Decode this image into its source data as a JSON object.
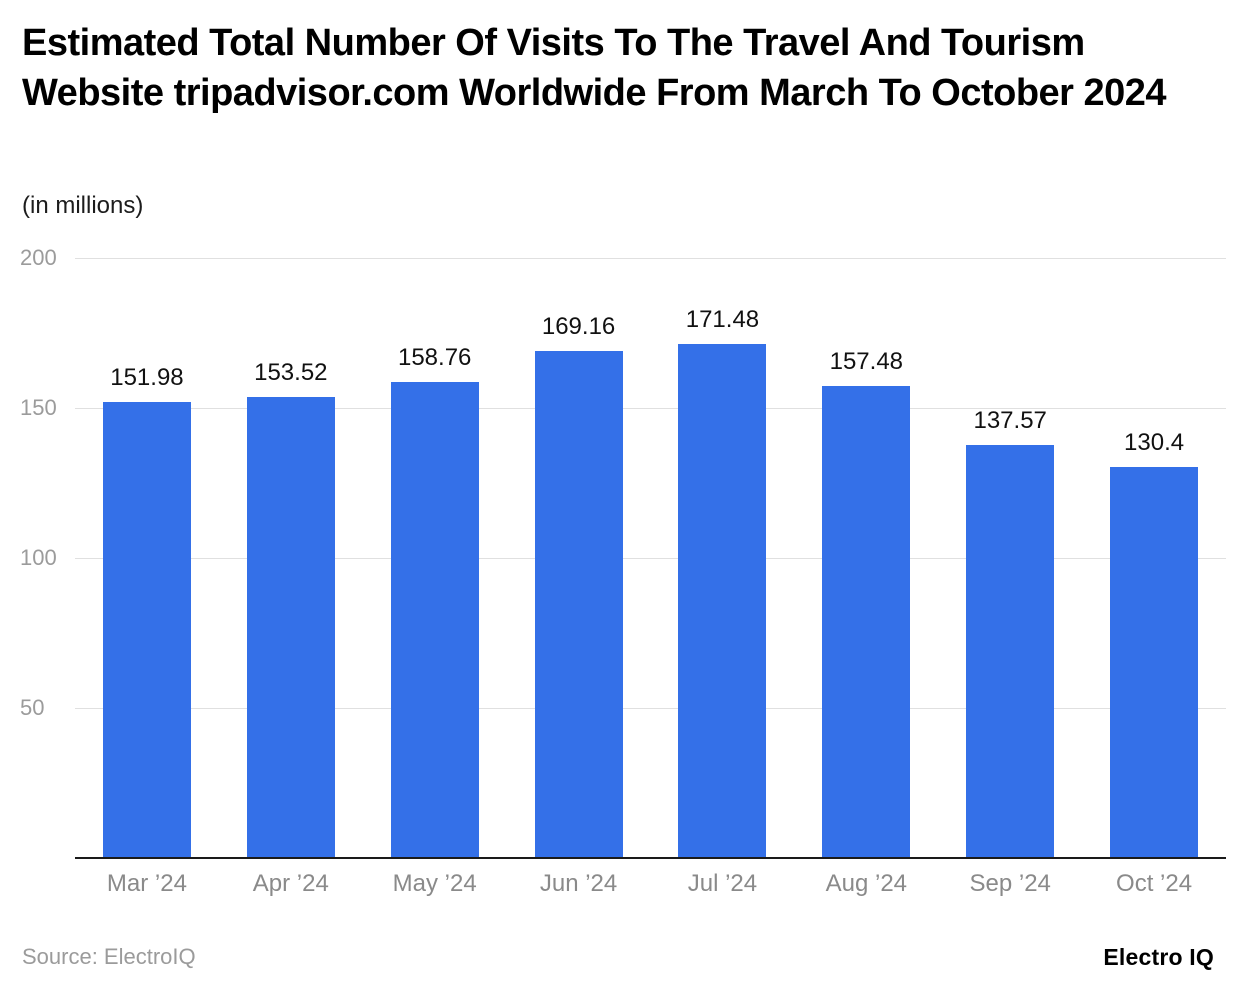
{
  "chart_data": {
    "type": "bar",
    "title": "Estimated Total Number Of Visits To The Travel And Tourism Website tripadvisor.com Worldwide From March To October 2024",
    "subtitle": "(in millions)",
    "categories": [
      "Mar ’24",
      "Apr ’24",
      "May ’24",
      "Jun ’24",
      "Jul ’24",
      "Aug ’24",
      "Sep ’24",
      "Oct ’24"
    ],
    "values": [
      151.98,
      153.52,
      158.76,
      169.16,
      171.48,
      157.48,
      137.57,
      130.4
    ],
    "xlabel": "",
    "ylabel": "",
    "ylim": [
      0,
      200
    ],
    "yticks": [
      200,
      150,
      100,
      50
    ],
    "grid": true,
    "legend": false,
    "bar_color": "#3470e8"
  },
  "footer": {
    "source": "Source: ElectroIQ",
    "brand": "Electro IQ"
  }
}
